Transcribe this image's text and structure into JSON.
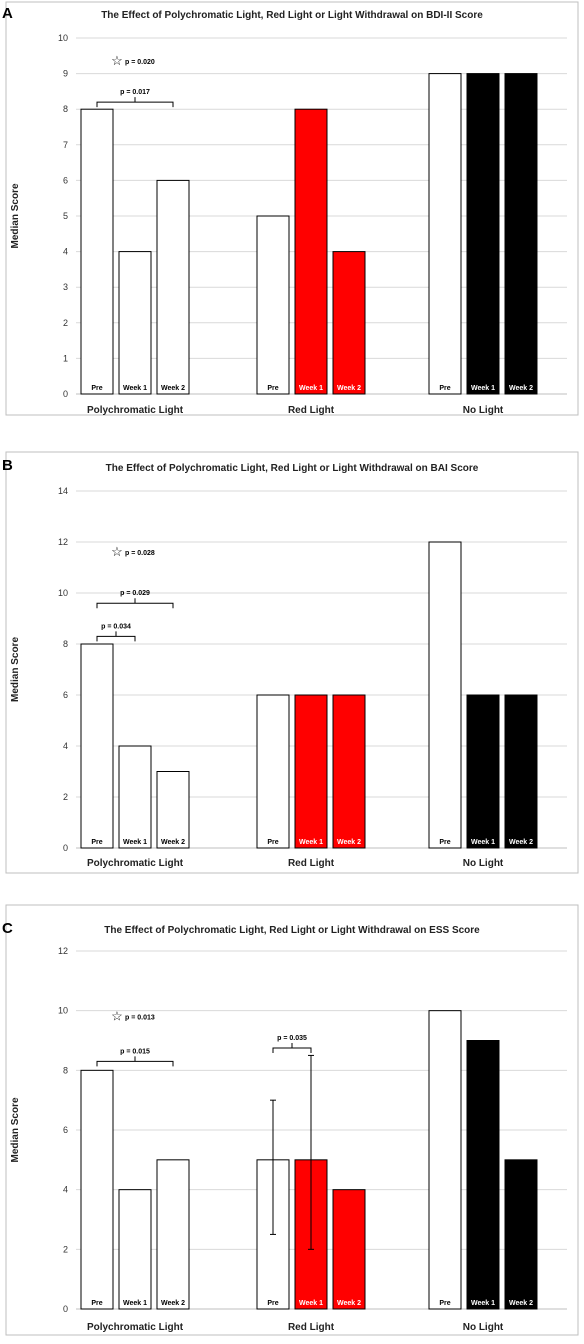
{
  "chart_data": [
    {
      "panel_letter": "A",
      "type": "bar",
      "title": "The Effect of Polychromatic Light, Red Light or Light Withdrawal on BDI-II Score",
      "ylabel": "Median Score",
      "ylim": [
        0,
        10
      ],
      "yticks": [
        "0",
        "1",
        "2",
        "3",
        "4",
        "5",
        "6",
        "7",
        "8",
        "9",
        "10"
      ],
      "groups": [
        "Polychromatic Light",
        "Red Light",
        "No Light"
      ],
      "series": [
        {
          "name": "Pre",
          "values": [
            8,
            5,
            9
          ],
          "colors": [
            "#ffffff",
            "#ffffff",
            "#ffffff"
          ]
        },
        {
          "name": "Week 1",
          "values": [
            4,
            8,
            9
          ],
          "colors": [
            "#ffffff",
            "#ff0000",
            "#000000"
          ]
        },
        {
          "name": "Week 2",
          "values": [
            6,
            4,
            9
          ],
          "colors": [
            "#ffffff",
            "#ff0000",
            "#000000"
          ]
        }
      ],
      "brackets": [
        {
          "group": 0,
          "from": 0,
          "to": 2,
          "label": "p = 0.017",
          "y": 8.2
        }
      ],
      "stars": [
        {
          "group": 0,
          "label": "p = 0.020",
          "y": 9.35
        }
      ],
      "error_bars": []
    },
    {
      "panel_letter": "B",
      "type": "bar",
      "title": "The Effect of Polychromatic Light, Red Light or Light Withdrawal on BAI Score",
      "ylabel": "Median Score",
      "ylim": [
        0,
        14
      ],
      "yticks": [
        "0",
        "2",
        "4",
        "6",
        "8",
        "10",
        "12",
        "14"
      ],
      "groups": [
        "Polychromatic Light",
        "Red Light",
        "No Light"
      ],
      "series": [
        {
          "name": "Pre",
          "values": [
            8,
            6,
            12
          ],
          "colors": [
            "#ffffff",
            "#ffffff",
            "#ffffff"
          ]
        },
        {
          "name": "Week 1",
          "values": [
            4,
            6,
            6
          ],
          "colors": [
            "#ffffff",
            "#ff0000",
            "#000000"
          ]
        },
        {
          "name": "Week 2",
          "values": [
            3,
            6,
            6
          ],
          "colors": [
            "#ffffff",
            "#ff0000",
            "#000000"
          ]
        }
      ],
      "brackets": [
        {
          "group": 0,
          "from": 0,
          "to": 1,
          "label": "p = 0.034",
          "y": 8.3
        },
        {
          "group": 0,
          "from": 0,
          "to": 2,
          "label": "p = 0.029",
          "y": 9.6
        }
      ],
      "stars": [
        {
          "group": 0,
          "label": "p = 0.028",
          "y": 11.6
        }
      ],
      "error_bars": []
    },
    {
      "panel_letter": "C",
      "type": "bar",
      "title": "The Effect of Polychromatic Light, Red Light or Light Withdrawal on ESS Score",
      "ylabel": "Median Score",
      "ylim": [
        0,
        12
      ],
      "yticks": [
        "0",
        "2",
        "4",
        "6",
        "8",
        "10",
        "12"
      ],
      "groups": [
        "Polychromatic Light",
        "Red Light",
        "No Light"
      ],
      "series": [
        {
          "name": "Pre",
          "values": [
            8,
            5,
            10
          ],
          "colors": [
            "#ffffff",
            "#ffffff",
            "#ffffff"
          ]
        },
        {
          "name": "Week 1",
          "values": [
            4,
            5,
            9
          ],
          "colors": [
            "#ffffff",
            "#ff0000",
            "#000000"
          ]
        },
        {
          "name": "Week 2",
          "values": [
            5,
            4,
            5
          ],
          "colors": [
            "#ffffff",
            "#ff0000",
            "#000000"
          ]
        }
      ],
      "brackets": [
        {
          "group": 0,
          "from": 0,
          "to": 2,
          "label": "p = 0.015",
          "y": 8.3
        },
        {
          "group": 1,
          "from": 0,
          "to": 1,
          "label": "p = 0.035",
          "y": 8.75
        }
      ],
      "stars": [
        {
          "group": 0,
          "label": "p = 0.013",
          "y": 9.8
        }
      ],
      "error_bars": [
        {
          "group": 1,
          "series": 0,
          "low": 2.5,
          "high": 7
        },
        {
          "group": 1,
          "series": 1,
          "low": 2,
          "high": 8.5
        }
      ]
    }
  ],
  "colors": {
    "bar_outline": "#000000",
    "red": "#ff0000",
    "black": "#000000",
    "gridline": "#d9d9d9",
    "panel_border": "#bfbfbf"
  }
}
